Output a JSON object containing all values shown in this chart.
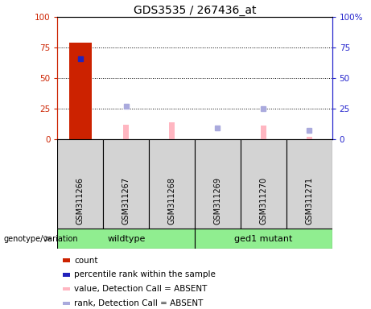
{
  "title": "GDS3535 / 267436_at",
  "samples": [
    "GSM311266",
    "GSM311267",
    "GSM311268",
    "GSM311269",
    "GSM311270",
    "GSM311271"
  ],
  "count_values": [
    79,
    0,
    0,
    0,
    0,
    0
  ],
  "percentile_rank_values": [
    66,
    0,
    0,
    0,
    0,
    0
  ],
  "absent_value_bars": [
    0,
    12,
    14,
    0,
    11,
    2
  ],
  "absent_rank_markers": [
    0,
    27,
    0,
    9,
    25,
    7
  ],
  "ylim_left": [
    0,
    100
  ],
  "ylim_right": [
    0,
    100
  ],
  "yticks": [
    0,
    25,
    50,
    75,
    100
  ],
  "ytick_labels_left": [
    "0",
    "25",
    "50",
    "75",
    "100"
  ],
  "ytick_labels_right": [
    "0",
    "25",
    "50",
    "75",
    "100%"
  ],
  "left_axis_color": "#CC2200",
  "right_axis_color": "#2222CC",
  "count_bar_color": "#CC2200",
  "percentile_marker_color": "#2222BB",
  "absent_value_color": "#FFB6C1",
  "absent_rank_color": "#AAAADD",
  "bg_color": "#FFFFFF",
  "plot_bg_color": "#FFFFFF",
  "label_area_color": "#D3D3D3",
  "group_color": "#90EE90",
  "genotype_label": "genotype/variation",
  "group_ranges": [
    [
      -0.5,
      2.5,
      "wildtype"
    ],
    [
      2.5,
      5.5,
      "ged1 mutant"
    ]
  ],
  "grid_yticks": [
    25,
    50,
    75
  ],
  "legend_items": [
    {
      "color": "#CC2200",
      "label": "count"
    },
    {
      "color": "#2222BB",
      "label": "percentile rank within the sample"
    },
    {
      "color": "#FFB6C1",
      "label": "value, Detection Call = ABSENT"
    },
    {
      "color": "#AAAADD",
      "label": "rank, Detection Call = ABSENT"
    }
  ]
}
